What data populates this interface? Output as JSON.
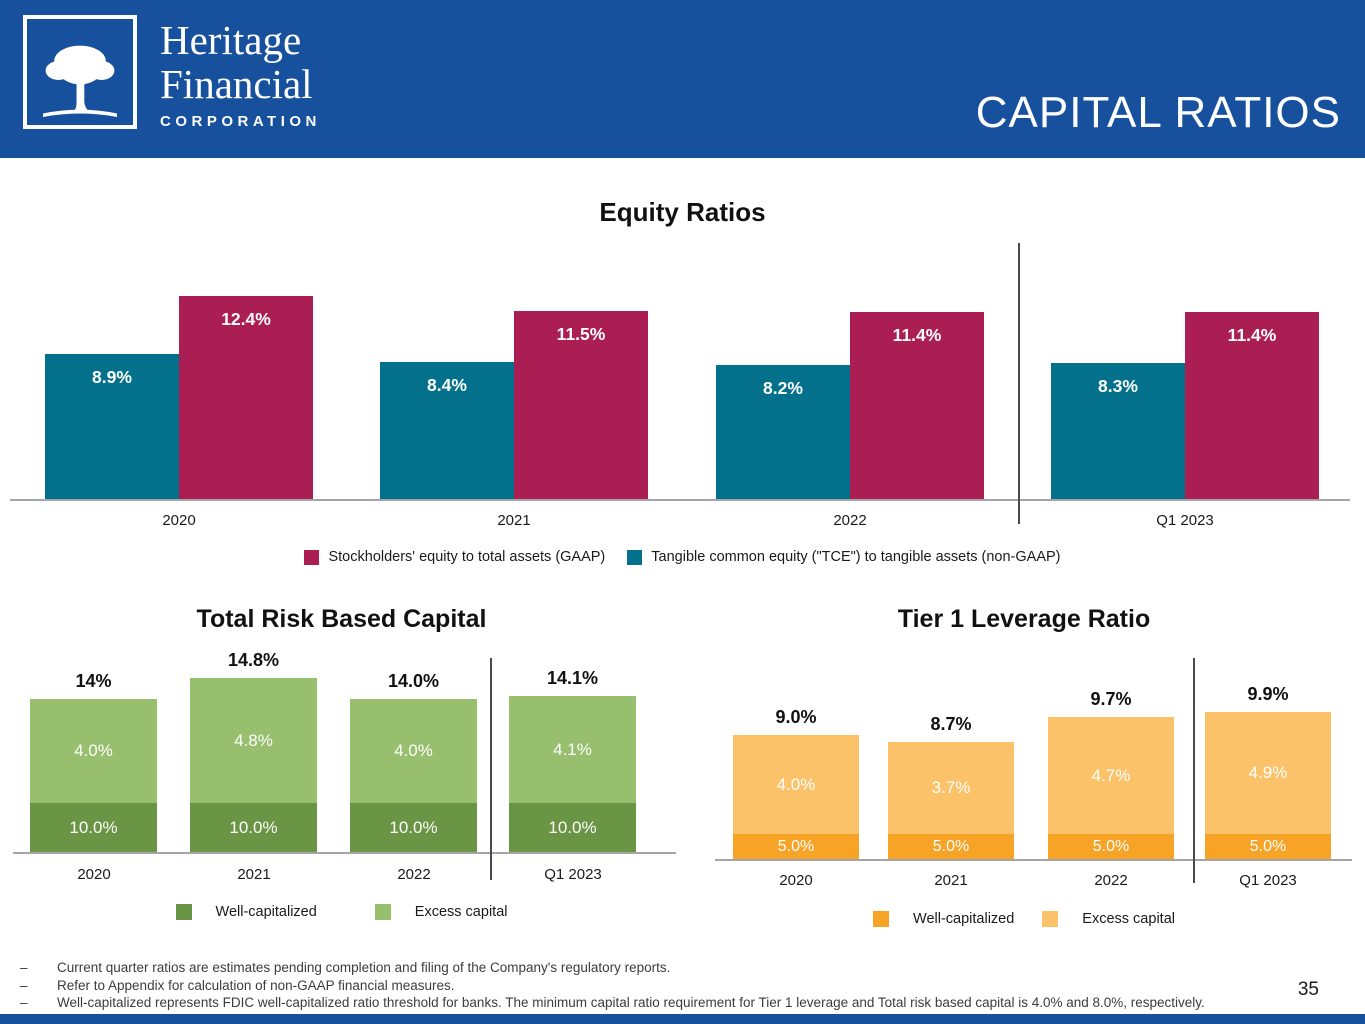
{
  "slide": {
    "header": {
      "logo_line1": "Heritage",
      "logo_line2": "Financial",
      "logo_line3": "CORPORATION",
      "title": "CAPITAL RATIOS"
    },
    "page_number": "35",
    "footnote_bullet": "–",
    "footnotes": [
      "Current quarter ratios are estimates pending completion and filing of the Company's regulatory reports.",
      "Refer to Appendix for calculation of non-GAAP financial measures.",
      "Well-capitalized represents FDIC well-capitalized ratio threshold for banks. The minimum capital ratio requirement for Tier 1 leverage and Total risk based capital is 4.0% and 8.0%, respectively."
    ],
    "colors": {
      "header_blue": "#17519E",
      "teal": "#04718C",
      "crimson": "#AA1E53",
      "dark_green": "#6A9544",
      "light_green": "#97BF6D",
      "dark_orange": "#F7A326",
      "light_orange": "#FBC269",
      "axis_gray": "#A5A5A5",
      "divider_gray": "#4A4A4A",
      "label_white": "#FFFFFF",
      "label_black": "#111111"
    }
  },
  "chart_data": [
    {
      "id": "equity-ratios",
      "type": "bar",
      "title": "Equity Ratios",
      "categories": [
        "2020",
        "2021",
        "2022",
        "Q1 2023"
      ],
      "series": [
        {
          "name": "Tangible common equity (\"TCE\") to tangible assets (non-GAAP)",
          "color_key": "teal",
          "values": [
            8.9,
            8.4,
            8.2,
            8.3
          ],
          "labels": [
            "8.9%",
            "8.4%",
            "8.2%",
            "8.3%"
          ]
        },
        {
          "name": "Stockholders' equity to total assets (GAAP)",
          "color_key": "crimson",
          "values": [
            12.4,
            11.5,
            11.4,
            11.4
          ],
          "labels": [
            "12.4%",
            "11.5%",
            "11.4%",
            "11.4%"
          ]
        }
      ],
      "legend": [
        {
          "label": "Stockholders' equity to total assets (GAAP)",
          "color_key": "crimson"
        },
        {
          "label": "Tangible common equity (\"TCE\") to tangible assets (non-GAAP)",
          "color_key": "teal"
        }
      ],
      "legend_position": "bottom",
      "ylim": [
        0,
        14
      ],
      "grid": false,
      "separator_after_category": "2022"
    },
    {
      "id": "total-risk-based-capital",
      "type": "stacked-bar",
      "title": "Total Risk Based Capital",
      "categories": [
        "2020",
        "2021",
        "2022",
        "Q1 2023"
      ],
      "series": [
        {
          "name": "Well-capitalized",
          "color_key": "dark_green",
          "values": [
            10.0,
            10.0,
            10.0,
            10.0
          ],
          "labels": [
            "10.0%",
            "10.0%",
            "10.0%",
            "10.0%"
          ]
        },
        {
          "name": "Excess capital",
          "color_key": "light_green",
          "values": [
            4.0,
            4.8,
            4.0,
            4.1
          ],
          "labels": [
            "4.0%",
            "4.8%",
            "4.0%",
            "4.1%"
          ]
        }
      ],
      "totals": [
        "14%",
        "14.8%",
        "14.0%",
        "14.1%"
      ],
      "legend": [
        {
          "label": "Well-capitalized",
          "color_key": "dark_green"
        },
        {
          "label": "Excess capital",
          "color_key": "light_green"
        }
      ],
      "legend_position": "bottom",
      "grid": false,
      "separator_after_category": "2022"
    },
    {
      "id": "tier-1-leverage-ratio",
      "type": "stacked-bar",
      "title": "Tier 1 Leverage Ratio",
      "categories": [
        "2020",
        "2021",
        "2022",
        "Q1 2023"
      ],
      "series": [
        {
          "name": "Well-capitalized",
          "color_key": "dark_orange",
          "values": [
            5.0,
            5.0,
            5.0,
            5.0
          ],
          "labels": [
            "5.0%",
            "5.0%",
            "5.0%",
            "5.0%"
          ]
        },
        {
          "name": "Excess capital",
          "color_key": "light_orange",
          "values": [
            4.0,
            3.7,
            4.7,
            4.9
          ],
          "labels": [
            "4.0%",
            "3.7%",
            "4.7%",
            "4.9%"
          ]
        }
      ],
      "totals": [
        "9.0%",
        "8.7%",
        "9.7%",
        "9.9%"
      ],
      "legend": [
        {
          "label": "Well-capitalized",
          "color_key": "dark_orange"
        },
        {
          "label": "Excess capital",
          "color_key": "light_orange"
        }
      ],
      "legend_position": "bottom",
      "grid": false,
      "separator_after_category": "2022"
    }
  ]
}
